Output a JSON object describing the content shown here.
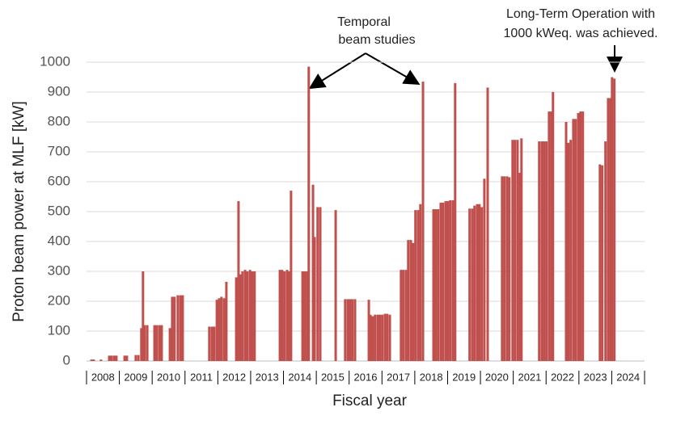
{
  "chart_data": {
    "type": "bar",
    "y_label": "Proton beam power at MLF [kW]",
    "x_label": "Fiscal year",
    "annotations": [
      [
        "Temporal",
        "beam studies"
      ],
      [
        "Long-Term Operation with",
        "1000 kWeq. was achieved."
      ]
    ],
    "color": "#c0504d",
    "grid": true,
    "xlim": [
      2008,
      2025
    ],
    "xticks": [
      2008,
      2009,
      2010,
      2011,
      2012,
      2013,
      2014,
      2015,
      2016,
      2017,
      2018,
      2019,
      2020,
      2021,
      2022,
      2023,
      2024
    ],
    "ylim": [
      0,
      1000
    ],
    "yticks": [
      0,
      100,
      200,
      300,
      400,
      500,
      600,
      700,
      800,
      900,
      1000
    ],
    "x": [
      2008.15,
      2008.22,
      2008.44,
      2008.69,
      2008.76,
      2008.84,
      2008.91,
      2009.16,
      2009.23,
      2009.5,
      2009.58,
      2009.67,
      2009.72,
      2009.77,
      2009.85,
      2010.07,
      2010.14,
      2010.22,
      2010.29,
      2010.54,
      2010.61,
      2010.68,
      2010.78,
      2010.86,
      2010.93,
      2011.74,
      2011.82,
      2011.89,
      2011.97,
      2012.04,
      2012.11,
      2012.19,
      2012.26,
      2012.56,
      2012.63,
      2012.68,
      2012.75,
      2012.83,
      2012.9,
      2012.98,
      2013.05,
      2013.12,
      2013.89,
      2013.96,
      2014.03,
      2014.11,
      2014.18,
      2014.23,
      2014.58,
      2014.65,
      2014.72,
      2014.77,
      2014.9,
      2014.95,
      2015.04,
      2015.12,
      2015.59,
      2015.88,
      2015.96,
      2016.03,
      2016.1,
      2016.18,
      2016.6,
      2016.65,
      2016.72,
      2016.79,
      2016.87,
      2016.94,
      2017.01,
      2017.09,
      2017.16,
      2017.24,
      2017.58,
      2017.65,
      2017.73,
      2017.8,
      2017.88,
      2017.95,
      2018.02,
      2018.1,
      2018.17,
      2018.25,
      2018.57,
      2018.64,
      2018.71,
      2018.79,
      2018.86,
      2018.94,
      2019.01,
      2019.08,
      2019.16,
      2019.23,
      2019.67,
      2019.75,
      2019.82,
      2019.9,
      2019.97,
      2020.04,
      2020.12,
      2020.22,
      2020.66,
      2020.73,
      2020.81,
      2020.88,
      2020.98,
      2021.05,
      2021.13,
      2021.2,
      2021.25,
      2021.79,
      2021.87,
      2021.94,
      2022.01,
      2022.09,
      2022.16,
      2022.21,
      2022.61,
      2022.68,
      2022.75,
      2022.83,
      2022.9,
      2022.98,
      2023.05,
      2023.12,
      2023.64,
      2023.71,
      2023.81,
      2023.89,
      2023.96,
      2024.01,
      2024.08
    ],
    "values": [
      5,
      5,
      5,
      18,
      18,
      18,
      18,
      18,
      18,
      20,
      20,
      110,
      300,
      120,
      120,
      120,
      120,
      120,
      120,
      110,
      215,
      215,
      220,
      220,
      220,
      115,
      115,
      115,
      205,
      210,
      215,
      210,
      265,
      280,
      535,
      290,
      300,
      305,
      300,
      305,
      300,
      300,
      305,
      305,
      300,
      305,
      300,
      570,
      300,
      300,
      300,
      985,
      590,
      415,
      515,
      515,
      505,
      207,
      207,
      207,
      207,
      207,
      205,
      155,
      150,
      155,
      155,
      155,
      155,
      158,
      158,
      155,
      305,
      305,
      305,
      405,
      405,
      395,
      505,
      505,
      525,
      935,
      508,
      508,
      508,
      530,
      530,
      535,
      535,
      538,
      538,
      930,
      510,
      510,
      520,
      525,
      525,
      515,
      610,
      915,
      618,
      618,
      618,
      615,
      740,
      740,
      740,
      630,
      745,
      735,
      735,
      735,
      735,
      835,
      835,
      900,
      800,
      730,
      740,
      810,
      810,
      830,
      835,
      835,
      658,
      655,
      735,
      880,
      880,
      950,
      945
    ]
  }
}
